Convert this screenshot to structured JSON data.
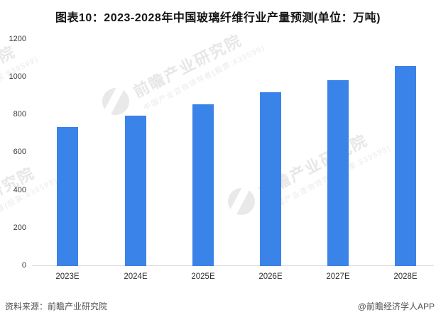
{
  "chart_data": {
    "type": "bar",
    "title": "图表10：2023-2028年中国玻璃纤维行业产量预测(单位：万吨)",
    "categories": [
      "2023E",
      "2024E",
      "2025E",
      "2026E",
      "2027E",
      "2028E"
    ],
    "values": [
      735,
      795,
      855,
      920,
      985,
      1060
    ],
    "xlabel": "",
    "ylabel": "",
    "unit": "万吨",
    "ylim": [
      0,
      1200
    ],
    "yticks": [
      1200,
      1000,
      800,
      600,
      400,
      200,
      0
    ],
    "grid": "off",
    "legend": "none",
    "bar_color": "#3A83E8",
    "axis_line_color": "#d8d8d8"
  },
  "watermark": {
    "main": "前瞻产业研究院",
    "sub": "中国产业咨询领导者(股票:839599)",
    "color": "#e7e7e7"
  },
  "footer": {
    "source": "资料来源：前瞻产业研究院",
    "credit": "@前瞻经济学人APP"
  }
}
